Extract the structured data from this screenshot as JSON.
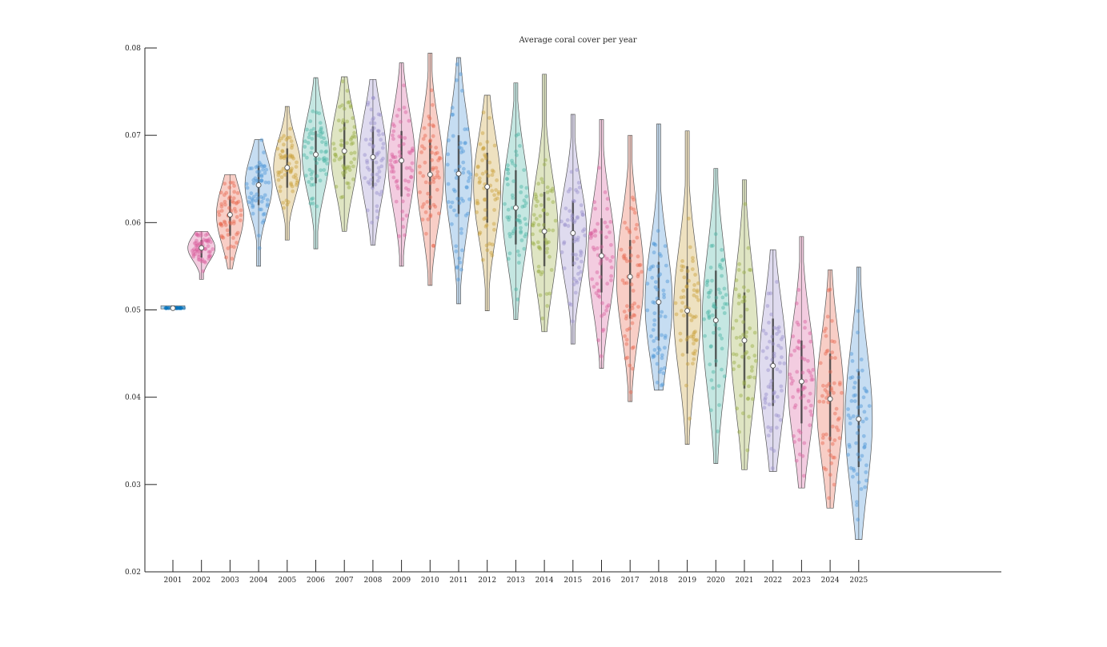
{
  "chart_data": {
    "type": "violin",
    "title": "Average coral cover per year",
    "xlabel": "",
    "ylabel": "",
    "ylim": [
      0.02,
      0.08
    ],
    "yticks": [
      0.02,
      0.03,
      0.04,
      0.05,
      0.06,
      0.07,
      0.08
    ],
    "ytick_labels": [
      "0.02",
      "0.03",
      "0.04",
      "0.05",
      "0.06",
      "0.07",
      "0.08"
    ],
    "categories": [
      "2001",
      "2002",
      "2003",
      "2004",
      "2005",
      "2006",
      "2007",
      "2008",
      "2009",
      "2010",
      "2011",
      "2012",
      "2013",
      "2014",
      "2015",
      "2016",
      "2017",
      "2018",
      "2019",
      "2020",
      "2021",
      "2022",
      "2023",
      "2024",
      "2025"
    ],
    "grid": false,
    "legend": "none",
    "palette": [
      "#0072bd",
      "#d95f9e",
      "#e8684f",
      "#4d96d6",
      "#c9a23c",
      "#4bb3a4",
      "#9aae44",
      "#9a90cd"
    ],
    "series": [
      {
        "year": "2001",
        "median": 0.0502,
        "min": 0.0501,
        "max": 0.0503,
        "q1": 0.0502,
        "q3": 0.0502,
        "color": "#0072bd"
      },
      {
        "year": "2002",
        "median": 0.0571,
        "min": 0.0535,
        "max": 0.059,
        "q1": 0.056,
        "q3": 0.058,
        "color": "#d95f9e"
      },
      {
        "year": "2003",
        "median": 0.0609,
        "min": 0.0547,
        "max": 0.0655,
        "q1": 0.0585,
        "q3": 0.063,
        "color": "#e8684f"
      },
      {
        "year": "2004",
        "median": 0.0643,
        "min": 0.055,
        "max": 0.0695,
        "q1": 0.062,
        "q3": 0.0665,
        "color": "#4d96d6"
      },
      {
        "year": "2005",
        "median": 0.0663,
        "min": 0.058,
        "max": 0.0733,
        "q1": 0.064,
        "q3": 0.0685,
        "color": "#c9a23c"
      },
      {
        "year": "2006",
        "median": 0.0678,
        "min": 0.057,
        "max": 0.0766,
        "q1": 0.0645,
        "q3": 0.0705,
        "color": "#4bb3a4"
      },
      {
        "year": "2007",
        "median": 0.0682,
        "min": 0.059,
        "max": 0.0767,
        "q1": 0.065,
        "q3": 0.0715,
        "color": "#9aae44"
      },
      {
        "year": "2008",
        "median": 0.0675,
        "min": 0.0574,
        "max": 0.0764,
        "q1": 0.064,
        "q3": 0.071,
        "color": "#9a90cd"
      },
      {
        "year": "2009",
        "median": 0.0671,
        "min": 0.055,
        "max": 0.0783,
        "q1": 0.063,
        "q3": 0.0705,
        "color": "#d95f9e"
      },
      {
        "year": "2010",
        "median": 0.0655,
        "min": 0.0528,
        "max": 0.0794,
        "q1": 0.0615,
        "q3": 0.0695,
        "color": "#e8684f"
      },
      {
        "year": "2011",
        "median": 0.0656,
        "min": 0.0507,
        "max": 0.0789,
        "q1": 0.061,
        "q3": 0.07,
        "color": "#4d96d6"
      },
      {
        "year": "2012",
        "median": 0.0641,
        "min": 0.0499,
        "max": 0.0746,
        "q1": 0.06,
        "q3": 0.068,
        "color": "#c9a23c"
      },
      {
        "year": "2013",
        "median": 0.0617,
        "min": 0.0489,
        "max": 0.076,
        "q1": 0.0575,
        "q3": 0.066,
        "color": "#4bb3a4"
      },
      {
        "year": "2014",
        "median": 0.059,
        "min": 0.0475,
        "max": 0.077,
        "q1": 0.055,
        "q3": 0.0635,
        "color": "#9aae44"
      },
      {
        "year": "2015",
        "median": 0.0588,
        "min": 0.0461,
        "max": 0.0724,
        "q1": 0.055,
        "q3": 0.0625,
        "color": "#9a90cd"
      },
      {
        "year": "2016",
        "median": 0.0562,
        "min": 0.0433,
        "max": 0.0718,
        "q1": 0.052,
        "q3": 0.0605,
        "color": "#d95f9e"
      },
      {
        "year": "2017",
        "median": 0.0538,
        "min": 0.0395,
        "max": 0.07,
        "q1": 0.049,
        "q3": 0.058,
        "color": "#e8684f"
      },
      {
        "year": "2018",
        "median": 0.0509,
        "min": 0.0408,
        "max": 0.0713,
        "q1": 0.0465,
        "q3": 0.0555,
        "color": "#4d96d6"
      },
      {
        "year": "2019",
        "median": 0.0499,
        "min": 0.0346,
        "max": 0.0705,
        "q1": 0.045,
        "q3": 0.055,
        "color": "#c9a23c"
      },
      {
        "year": "2020",
        "median": 0.0488,
        "min": 0.0324,
        "max": 0.0662,
        "q1": 0.0435,
        "q3": 0.0545,
        "color": "#4bb3a4"
      },
      {
        "year": "2021",
        "median": 0.0465,
        "min": 0.0317,
        "max": 0.0649,
        "q1": 0.041,
        "q3": 0.052,
        "color": "#9aae44"
      },
      {
        "year": "2022",
        "median": 0.0436,
        "min": 0.0315,
        "max": 0.0569,
        "q1": 0.039,
        "q3": 0.049,
        "color": "#9a90cd"
      },
      {
        "year": "2023",
        "median": 0.0418,
        "min": 0.0296,
        "max": 0.0584,
        "q1": 0.037,
        "q3": 0.0465,
        "color": "#d95f9e"
      },
      {
        "year": "2024",
        "median": 0.0398,
        "min": 0.0273,
        "max": 0.0546,
        "q1": 0.035,
        "q3": 0.045,
        "color": "#e8684f"
      },
      {
        "year": "2025",
        "median": 0.0375,
        "min": 0.0237,
        "max": 0.0549,
        "q1": 0.032,
        "q3": 0.043,
        "color": "#4d96d6"
      }
    ]
  }
}
